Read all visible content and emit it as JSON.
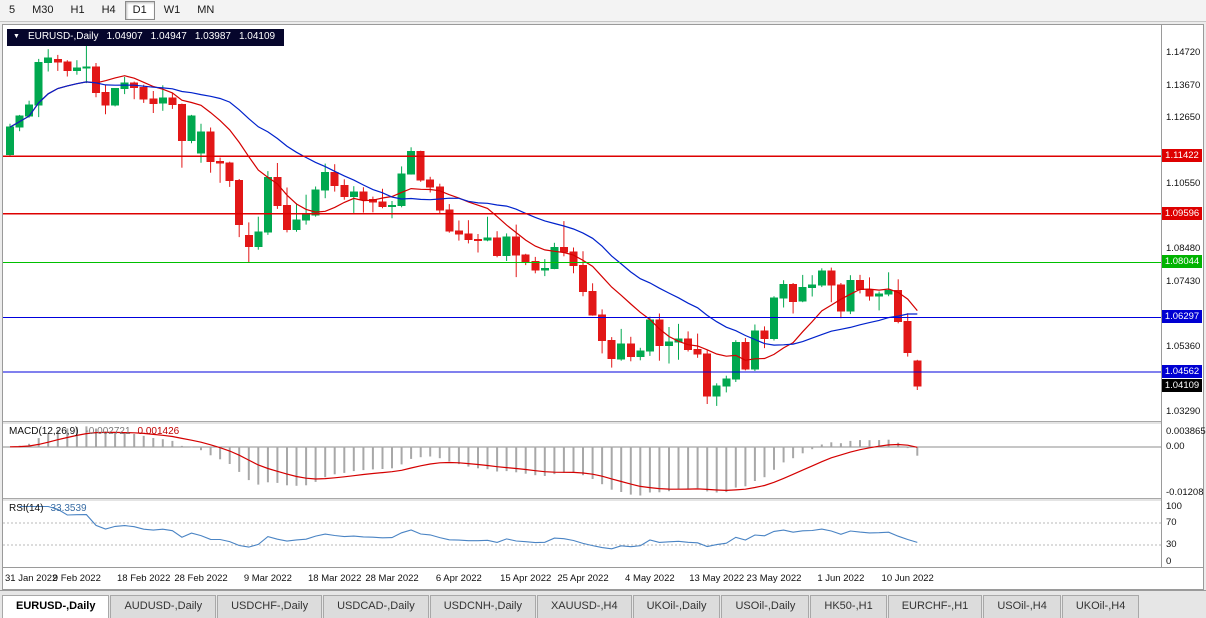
{
  "toolbar": {
    "timeframes": [
      "5",
      "M30",
      "H1",
      "H4",
      "D1",
      "W1",
      "MN"
    ],
    "active": "D1"
  },
  "chart": {
    "symbol": "EURUSD-,Daily",
    "open": "1.04907",
    "high": "1.04947",
    "low": "1.03987",
    "close": "1.04109",
    "price_axis": {
      "labels": [
        {
          "text": "1.14720",
          "v": 1.1472
        },
        {
          "text": "1.13670",
          "v": 1.1367
        },
        {
          "text": "1.12650",
          "v": 1.1265
        },
        {
          "text": "1.10550",
          "v": 1.1055
        },
        {
          "text": "1.08480",
          "v": 1.0848
        },
        {
          "text": "1.07430",
          "v": 1.0743
        },
        {
          "text": "1.05360",
          "v": 1.0536
        },
        {
          "text": "1.03290",
          "v": 1.0329
        }
      ],
      "badges": [
        {
          "text": "1.11422",
          "v": 1.11422,
          "bg": "#de0000"
        },
        {
          "text": "1.09596",
          "v": 1.09596,
          "bg": "#de0000"
        },
        {
          "text": "1.08044",
          "v": 1.08044,
          "bg": "#00b300"
        },
        {
          "text": "1.06297",
          "v": 1.06297,
          "bg": "#0000d2"
        },
        {
          "text": "1.04562",
          "v": 1.04562,
          "bg": "#0000d2"
        },
        {
          "text": "1.04109",
          "v": 1.04109,
          "bg": "#000000"
        }
      ]
    },
    "macd_axis": [
      {
        "text": "0.003865",
        "v": 0.003865
      },
      {
        "text": "0.00",
        "v": 0
      },
      {
        "text": "-0.01208",
        "v": -0.01208
      }
    ],
    "rsi_axis": [
      {
        "text": "100",
        "v": 100
      },
      {
        "text": "70",
        "v": 70
      },
      {
        "text": "30",
        "v": 30
      },
      {
        "text": "0",
        "v": 0
      }
    ]
  },
  "indicators": {
    "macd": {
      "name": "MACD(12,26,9)",
      "value_main": "-0.002721",
      "value_signal": "0.001426"
    },
    "rsi": {
      "name": "RSI(14)",
      "value": "33.3539"
    }
  },
  "colors": {
    "up": "#00a84f",
    "down": "#e21717",
    "ma_fast": "#d40000",
    "ma_slow": "#0022cc",
    "macd_hist": "#a8a8a8",
    "macd_signal": "#d40000",
    "rsi_line": "#4a84c4"
  },
  "chart_data": {
    "type": "candlestick",
    "title": "EURUSD-,Daily",
    "ylim": [
      1.03,
      1.156
    ],
    "ma_periods": {
      "fast": 10,
      "slow": 21
    },
    "hlines": [
      {
        "v": 1.11422,
        "color": "#de0000"
      },
      {
        "v": 1.09596,
        "color": "#de0000"
      },
      {
        "v": 1.08044,
        "color": "#00c000"
      },
      {
        "v": 1.06297,
        "color": "#0000dd"
      },
      {
        "v": 1.04562,
        "color": "#0000dd"
      }
    ],
    "macd": {
      "params": [
        12,
        26,
        9
      ],
      "ylim": [
        -0.013,
        0.0058
      ]
    },
    "rsi": {
      "params": [
        14
      ],
      "ylim": [
        -10,
        110
      ],
      "levels": [
        30,
        70
      ]
    },
    "x_tick_indices": [
      0,
      7,
      14,
      20,
      27,
      34,
      40,
      47,
      54,
      60,
      67,
      74,
      80,
      87,
      94
    ],
    "x_tick_labels": [
      "31 Jan 2022",
      "9 Feb 2022",
      "18 Feb 2022",
      "28 Feb 2022",
      "9 Mar 2022",
      "18 Mar 2022",
      "28 Mar 2022",
      "6 Apr 2022",
      "15 Apr 2022",
      "25 Apr 2022",
      "4 May 2022",
      "13 May 2022",
      "23 May 2022",
      "1 Jun 2022",
      "10 Jun 2022"
    ],
    "candles": [
      [
        1.1148,
        1.1246,
        1.1141,
        1.1235
      ],
      [
        1.1235,
        1.1274,
        1.1222,
        1.127
      ],
      [
        1.127,
        1.1319,
        1.1265,
        1.1305
      ],
      [
        1.1305,
        1.1452,
        1.1267,
        1.144
      ],
      [
        1.144,
        1.1483,
        1.1412,
        1.1455
      ],
      [
        1.145,
        1.1465,
        1.1414,
        1.1443
      ],
      [
        1.1443,
        1.1448,
        1.1396,
        1.1415
      ],
      [
        1.1415,
        1.1448,
        1.1402,
        1.1423
      ],
      [
        1.1423,
        1.1495,
        1.1375,
        1.1426
      ],
      [
        1.1426,
        1.1439,
        1.133,
        1.1345
      ],
      [
        1.1345,
        1.1369,
        1.1276,
        1.1306
      ],
      [
        1.1306,
        1.1359,
        1.1301,
        1.1358
      ],
      [
        1.1358,
        1.1395,
        1.134,
        1.1375
      ],
      [
        1.1375,
        1.138,
        1.1324,
        1.1361
      ],
      [
        1.1361,
        1.137,
        1.1312,
        1.1324
      ],
      [
        1.1324,
        1.135,
        1.128,
        1.1311
      ],
      [
        1.1311,
        1.1368,
        1.1287,
        1.1328
      ],
      [
        1.1328,
        1.1342,
        1.1293,
        1.1307
      ],
      [
        1.1307,
        1.131,
        1.1106,
        1.1193
      ],
      [
        1.1193,
        1.1274,
        1.1184,
        1.127
      ],
      [
        1.1153,
        1.1246,
        1.1122,
        1.1219
      ],
      [
        1.1219,
        1.1234,
        1.109,
        1.1125
      ],
      [
        1.1125,
        1.1138,
        1.1058,
        1.1121
      ],
      [
        1.1121,
        1.1125,
        1.1045,
        1.1065
      ],
      [
        1.1065,
        1.107,
        1.0885,
        1.0926
      ],
      [
        1.089,
        1.0932,
        1.0806,
        1.0855
      ],
      [
        1.0855,
        1.095,
        1.0845,
        1.0902
      ],
      [
        1.0902,
        1.1095,
        1.0892,
        1.1075
      ],
      [
        1.1075,
        1.1121,
        1.0975,
        1.0985
      ],
      [
        1.0985,
        1.1043,
        1.09,
        1.091
      ],
      [
        1.091,
        1.0993,
        1.0902,
        1.094
      ],
      [
        1.094,
        1.102,
        1.0925,
        1.0955
      ],
      [
        1.0955,
        1.1046,
        1.095,
        1.1035
      ],
      [
        1.1035,
        1.1119,
        1.1009,
        1.109
      ],
      [
        1.109,
        1.1117,
        1.103,
        1.105
      ],
      [
        1.105,
        1.1069,
        1.1004,
        1.1015
      ],
      [
        1.1015,
        1.1047,
        1.0962,
        1.1028
      ],
      [
        1.1028,
        1.1044,
        1.0963,
        1.1005
      ],
      [
        1.1005,
        1.1014,
        1.0964,
        1.0997
      ],
      [
        1.0997,
        1.1039,
        1.0977,
        1.0982
      ],
      [
        1.0982,
        1.1,
        1.0945,
        1.0985
      ],
      [
        1.0985,
        1.111,
        1.098,
        1.1086
      ],
      [
        1.1086,
        1.1171,
        1.1084,
        1.1157
      ],
      [
        1.1157,
        1.116,
        1.1061,
        1.1067
      ],
      [
        1.1067,
        1.1077,
        1.1027,
        1.1045
      ],
      [
        1.1045,
        1.1055,
        1.096,
        1.0972
      ],
      [
        1.0972,
        1.099,
        1.0899,
        1.0905
      ],
      [
        1.0905,
        1.0938,
        1.0874,
        1.0895
      ],
      [
        1.0895,
        1.0939,
        1.0865,
        1.0878
      ],
      [
        1.0878,
        1.0895,
        1.0836,
        1.0876
      ],
      [
        1.0876,
        1.095,
        1.0872,
        1.0883
      ],
      [
        1.0883,
        1.0904,
        1.0821,
        1.0826
      ],
      [
        1.0826,
        1.0897,
        1.0809,
        1.0885
      ],
      [
        1.0885,
        1.0925,
        1.0758,
        1.0828
      ],
      [
        1.0828,
        1.0832,
        1.0796,
        1.0807
      ],
      [
        1.0807,
        1.0822,
        1.077,
        1.0781
      ],
      [
        1.0781,
        1.0815,
        1.0761,
        1.0785
      ],
      [
        1.0785,
        1.0867,
        1.0783,
        1.0852
      ],
      [
        1.0852,
        1.0936,
        1.0824,
        1.0838
      ],
      [
        1.0838,
        1.0852,
        1.077,
        1.0795
      ],
      [
        1.0795,
        1.084,
        1.0697,
        1.0712
      ],
      [
        1.0712,
        1.0738,
        1.0635,
        1.0637
      ],
      [
        1.0637,
        1.0655,
        1.0515,
        1.0556
      ],
      [
        1.0556,
        1.0567,
        1.047,
        1.0498
      ],
      [
        1.0498,
        1.0593,
        1.0492,
        1.0545
      ],
      [
        1.0545,
        1.0568,
        1.049,
        1.0505
      ],
      [
        1.0505,
        1.0533,
        1.0493,
        1.0522
      ],
      [
        1.0522,
        1.0632,
        1.0507,
        1.0622
      ],
      [
        1.0622,
        1.0642,
        1.0492,
        1.054
      ],
      [
        1.054,
        1.0599,
        1.0483,
        1.0551
      ],
      [
        1.0551,
        1.0609,
        1.0495,
        1.0561
      ],
      [
        1.0561,
        1.0585,
        1.0521,
        1.0528
      ],
      [
        1.0528,
        1.0578,
        1.0501,
        1.0513
      ],
      [
        1.0513,
        1.0525,
        1.0354,
        1.0379
      ],
      [
        1.0379,
        1.042,
        1.0348,
        1.0411
      ],
      [
        1.0411,
        1.0444,
        1.0391,
        1.0434
      ],
      [
        1.0434,
        1.0557,
        1.0424,
        1.0549
      ],
      [
        1.0549,
        1.0564,
        1.0461,
        1.0465
      ],
      [
        1.0465,
        1.0607,
        1.0459,
        1.0587
      ],
      [
        1.0587,
        1.0601,
        1.0532,
        1.0563
      ],
      [
        1.0563,
        1.0697,
        1.0556,
        1.0691
      ],
      [
        1.0691,
        1.0748,
        1.0661,
        1.0735
      ],
      [
        1.0735,
        1.0739,
        1.0642,
        1.0681
      ],
      [
        1.0681,
        1.0765,
        1.0678,
        1.0724
      ],
      [
        1.0724,
        1.0764,
        1.0696,
        1.0733
      ],
      [
        1.0733,
        1.0786,
        1.0726,
        1.0777
      ],
      [
        1.0777,
        1.0788,
        1.0678,
        1.0733
      ],
      [
        1.0733,
        1.0739,
        1.0627,
        1.065
      ],
      [
        1.065,
        1.0764,
        1.064,
        1.0747
      ],
      [
        1.0747,
        1.0765,
        1.0706,
        1.0719
      ],
      [
        1.0719,
        1.0757,
        1.0683,
        1.0697
      ],
      [
        1.0697,
        1.0712,
        1.0652,
        1.0704
      ],
      [
        1.0704,
        1.0773,
        1.0697,
        1.0716
      ],
      [
        1.0716,
        1.0751,
        1.0611,
        1.0617
      ],
      [
        1.0617,
        1.0643,
        1.0505,
        1.0518
      ],
      [
        1.04907,
        1.04947,
        1.03987,
        1.04109
      ]
    ]
  },
  "tabs": [
    {
      "label": "EURUSD-,Daily",
      "active": true
    },
    {
      "label": "AUDUSD-,Daily"
    },
    {
      "label": "USDCHF-,Daily"
    },
    {
      "label": "USDCAD-,Daily"
    },
    {
      "label": "USDCNH-,Daily"
    },
    {
      "label": "XAUUSD-,H4"
    },
    {
      "label": "UKOil-,Daily"
    },
    {
      "label": "USOil-,Daily"
    },
    {
      "label": "HK50-,H1"
    },
    {
      "label": "EURCHF-,H1"
    },
    {
      "label": "USOil-,H4"
    },
    {
      "label": "UKOil-,H4"
    }
  ]
}
